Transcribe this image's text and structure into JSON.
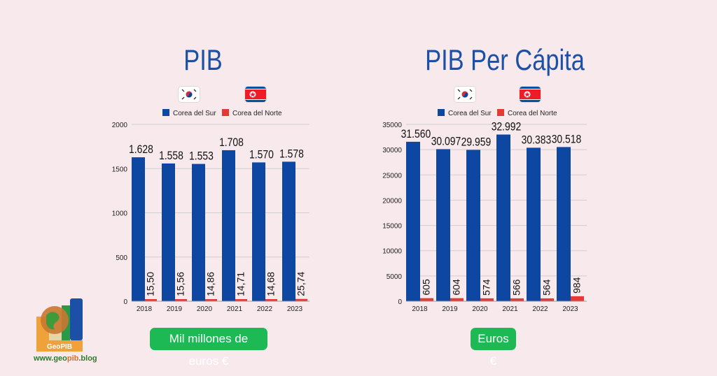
{
  "colors": {
    "south": "#0d47a1",
    "north": "#e53935",
    "accent_title": "#1c4fa6",
    "badge": "#1db954"
  },
  "logo": {
    "name": "GeoPIB",
    "url_prefix": "www.geo",
    "url_accent": "pib",
    "url_suffix": ".blog"
  },
  "chart_data": [
    {
      "type": "bar",
      "title": "PIB",
      "unit_label": "Mil millones de euros €",
      "categories": [
        "2018",
        "2019",
        "2020",
        "2021",
        "2022",
        "2023"
      ],
      "series": [
        {
          "name": "Corea del Sur",
          "values": [
            1628,
            1558,
            1553,
            1708,
            1570,
            1578
          ],
          "labels": [
            "1.628",
            "1.558",
            "1.553",
            "1.708",
            "1.570",
            "1.578"
          ]
        },
        {
          "name": "Corea del Norte",
          "values": [
            15.5,
            15.56,
            14.86,
            14.71,
            14.68,
            25.74
          ],
          "labels": [
            "15,50",
            "15,56",
            "14,86",
            "14,71",
            "14,68",
            "25,74"
          ]
        }
      ],
      "ylim": [
        0,
        2000
      ],
      "yticks": [
        0,
        500,
        1000,
        1500,
        2000
      ],
      "legend": "top-center",
      "grid": true
    },
    {
      "type": "bar",
      "title": "PIB Per Cápita",
      "unit_label": "Euros €",
      "categories": [
        "2018",
        "2019",
        "2020",
        "2021",
        "2022",
        "2023"
      ],
      "series": [
        {
          "name": "Corea del Sur",
          "values": [
            31560,
            30097,
            29959,
            32992,
            30383,
            30518
          ],
          "labels": [
            "31.560",
            "30.097",
            "29.959",
            "32.992",
            "30.383",
            "30.518"
          ]
        },
        {
          "name": "Corea del Norte",
          "values": [
            605,
            604,
            574,
            566,
            564,
            984
          ],
          "labels": [
            "605",
            "604",
            "574",
            "566",
            "564",
            "984"
          ]
        }
      ],
      "ylim": [
        0,
        35000
      ],
      "yticks": [
        0,
        5000,
        10000,
        15000,
        20000,
        25000,
        30000,
        35000
      ],
      "legend": "top-center",
      "grid": true
    }
  ]
}
